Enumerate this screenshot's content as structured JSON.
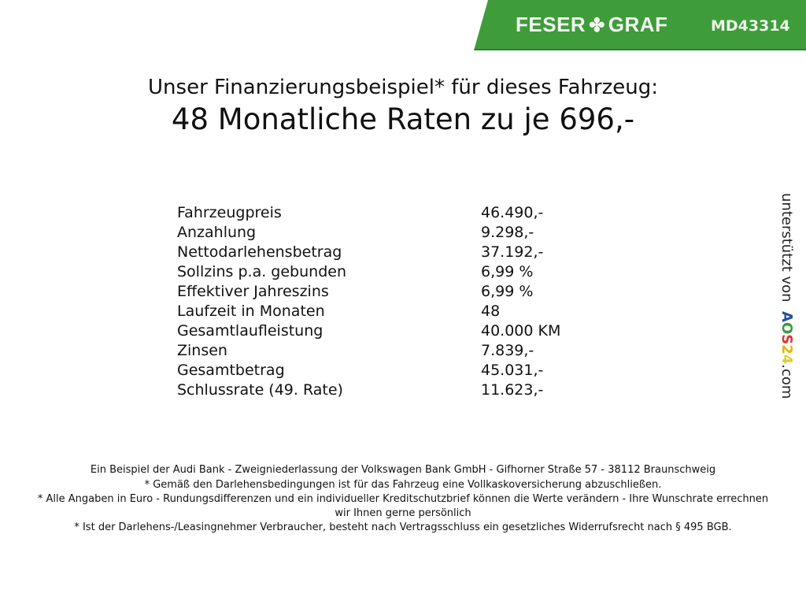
{
  "header": {
    "brand": "FESER",
    "brand2": "GRAF",
    "code": "MD43314",
    "brand_color": "#3f9c3b"
  },
  "title": {
    "line1": "Unser Finanzierungsbeispiel* für dieses Fahrzeug:",
    "line2": "48 Monatliche Raten zu je 696,-"
  },
  "rows": [
    {
      "label": "Fahrzeugpreis",
      "value": "46.490,-"
    },
    {
      "label": "Anzahlung",
      "value": "9.298,-"
    },
    {
      "label": "Nettodarlehensbetrag",
      "value": "37.192,-"
    },
    {
      "label": "Sollzins p.a. gebunden",
      "value": "6,99 %"
    },
    {
      "label": "Effektiver Jahreszins",
      "value": "6,99 %"
    },
    {
      "label": "Laufzeit in Monaten",
      "value": "48"
    },
    {
      "label": "Gesamtlaufleistung",
      "value": "40.000 KM"
    },
    {
      "label": "Zinsen",
      "value": "7.839,-"
    },
    {
      "label": "Gesamtbetrag",
      "value": "45.031,-"
    },
    {
      "label": "Schlussrate (49. Rate)",
      "value": "11.623,-"
    }
  ],
  "side": {
    "text": "unterstützt von",
    "logo": "AOS24",
    "suffix": ".com"
  },
  "footer": [
    "Ein Beispiel der Audi Bank - Zweigniederlassung der Volkswagen Bank GmbH - Gifhorner Straße 57 - 38112 Braunschweig",
    "* Gemäß den Darlehensbedingungen ist für das Fahrzeug eine Vollkaskoversicherung abzuschließen.",
    "* Alle Angaben in Euro - Rundungsdifferenzen und ein individueller Kreditschutzbrief können die Werte verändern - Ihre Wunschrate errechnen wir Ihnen gerne persönlich",
    "* Ist der Darlehens-/Leasingnehmer Verbraucher, besteht nach Vertragsschluss ein gesetzliches Widerrufsrecht nach § 495 BGB."
  ]
}
